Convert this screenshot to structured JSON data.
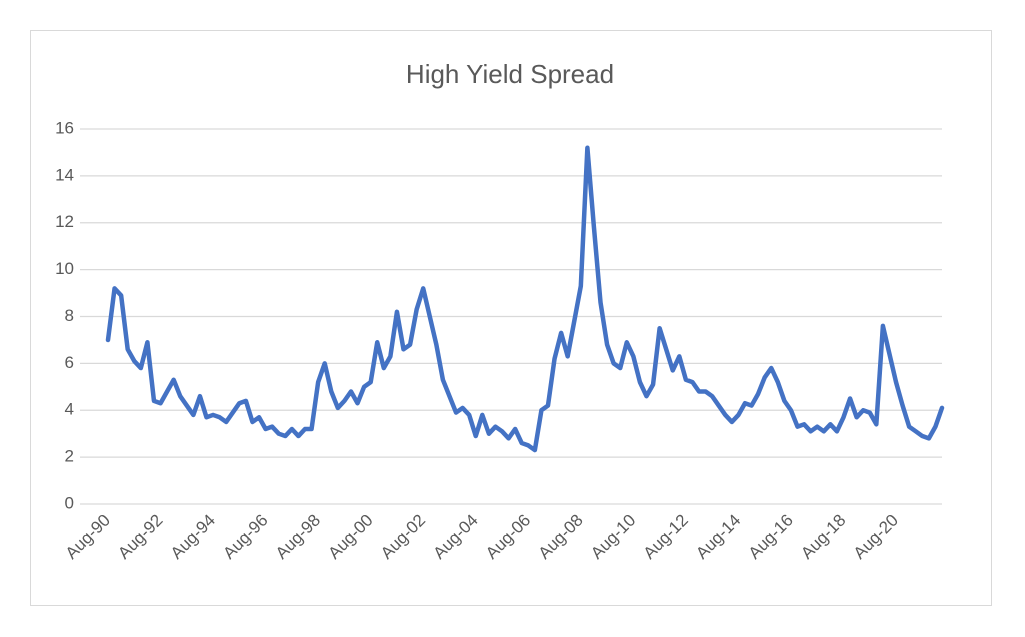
{
  "chart_data": {
    "type": "line",
    "title": "High Yield Spread",
    "categories": [
      "Aug-90",
      null,
      null,
      null,
      null,
      null,
      null,
      null,
      "Aug-92",
      null,
      null,
      null,
      null,
      null,
      null,
      null,
      "Aug-94",
      null,
      null,
      null,
      null,
      null,
      null,
      null,
      "Aug-96",
      null,
      null,
      null,
      null,
      null,
      null,
      null,
      "Aug-98",
      null,
      null,
      null,
      null,
      null,
      null,
      null,
      "Aug-00",
      null,
      null,
      null,
      null,
      null,
      null,
      null,
      "Aug-02",
      null,
      null,
      null,
      null,
      null,
      null,
      null,
      "Aug-04",
      null,
      null,
      null,
      null,
      null,
      null,
      null,
      "Aug-06",
      null,
      null,
      null,
      null,
      null,
      null,
      null,
      "Aug-08",
      null,
      null,
      null,
      null,
      null,
      null,
      null,
      "Aug-10",
      null,
      null,
      null,
      null,
      null,
      null,
      null,
      "Aug-12",
      null,
      null,
      null,
      null,
      null,
      null,
      null,
      "Aug-14",
      null,
      null,
      null,
      null,
      null,
      null,
      null,
      "Aug-16",
      null,
      null,
      null,
      null,
      null,
      null,
      null,
      "Aug-18",
      null,
      null,
      null,
      null,
      null,
      null,
      null,
      "Aug-20",
      null,
      null,
      null,
      null,
      null,
      null,
      null
    ],
    "series": [
      {
        "color": "#4472c4",
        "values": [
          7.0,
          9.2,
          8.9,
          6.6,
          6.1,
          5.8,
          6.9,
          4.4,
          4.3,
          4.8,
          5.3,
          4.6,
          4.2,
          3.8,
          4.6,
          3.7,
          3.8,
          3.7,
          3.5,
          3.9,
          4.3,
          4.4,
          3.5,
          3.7,
          3.2,
          3.3,
          3.0,
          2.9,
          3.2,
          2.9,
          3.2,
          3.2,
          5.2,
          6.0,
          4.8,
          4.1,
          4.4,
          4.8,
          4.3,
          5.0,
          5.2,
          6.9,
          5.8,
          6.3,
          8.2,
          6.6,
          6.8,
          8.3,
          9.2,
          8.0,
          6.8,
          5.3,
          4.6,
          3.9,
          4.1,
          3.8,
          2.9,
          3.8,
          3.0,
          3.3,
          3.1,
          2.8,
          3.2,
          2.6,
          2.5,
          2.3,
          4.0,
          4.2,
          6.2,
          7.3,
          6.3,
          7.8,
          9.3,
          15.2,
          11.8,
          8.6,
          6.8,
          6.0,
          5.8,
          6.9,
          6.3,
          5.2,
          4.6,
          5.1,
          7.5,
          6.6,
          5.7,
          6.3,
          5.3,
          5.2,
          4.8,
          4.8,
          4.6,
          4.2,
          3.8,
          3.5,
          3.8,
          4.3,
          4.2,
          4.7,
          5.4,
          5.8,
          5.2,
          4.4,
          4.0,
          3.3,
          3.4,
          3.1,
          3.3,
          3.1,
          3.4,
          3.1,
          3.7,
          4.5,
          3.7,
          4.0,
          3.9,
          3.4,
          7.6,
          6.4,
          5.2,
          4.2,
          3.3,
          3.1,
          2.9,
          2.8,
          3.3,
          4.1
        ]
      }
    ],
    "ylim": [
      0,
      16
    ],
    "yticks": [
      0,
      2,
      4,
      6,
      8,
      10,
      12,
      14,
      16
    ],
    "grid": true
  }
}
